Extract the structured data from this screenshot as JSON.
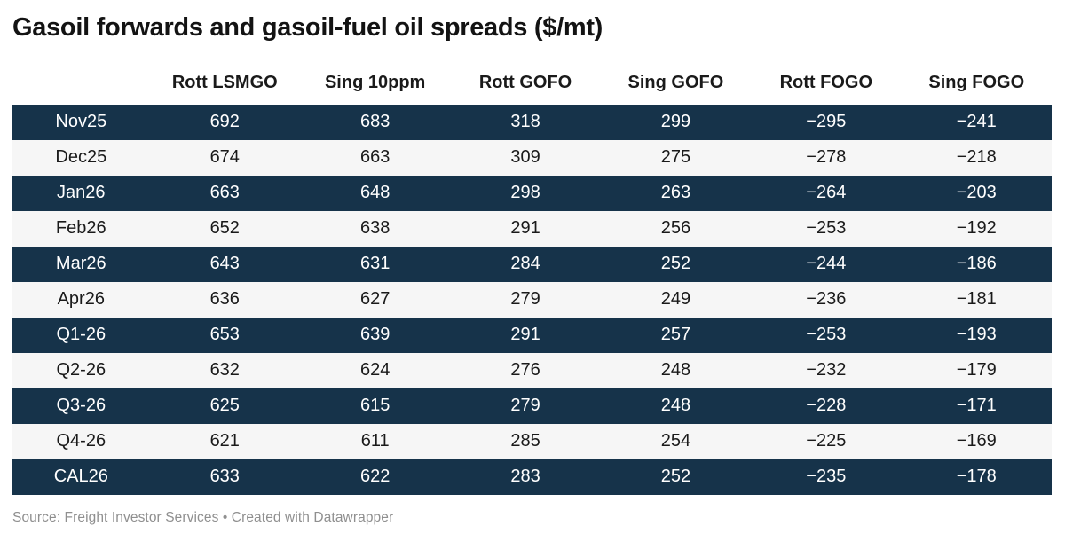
{
  "title": "Gasoil forwards and gasoil-fuel oil spreads ($/mt)",
  "footer": {
    "text": "Source: Freight Investor Services • Created with Datawrapper"
  },
  "colors": {
    "dark_row": "#16334a",
    "light_row": "#f6f6f6",
    "dark_row_text": "#ffffff",
    "body_text": "#1a1a1a",
    "footer_text": "#8f8f8f"
  },
  "chart_data": {
    "type": "table",
    "title": "Gasoil forwards and gasoil-fuel oil spreads ($/mt)",
    "columns": [
      "Rott LSMGO",
      "Sing 10ppm",
      "Rott GOFO",
      "Sing GOFO",
      "Rott FOGO",
      "Sing FOGO"
    ],
    "row_label_header": "",
    "rows": [
      {
        "label": "Nov25",
        "values": [
          692,
          683,
          318,
          299,
          -295,
          -241
        ]
      },
      {
        "label": "Dec25",
        "values": [
          674,
          663,
          309,
          275,
          -278,
          -218
        ]
      },
      {
        "label": "Jan26",
        "values": [
          663,
          648,
          298,
          263,
          -264,
          -203
        ]
      },
      {
        "label": "Feb26",
        "values": [
          652,
          638,
          291,
          256,
          -253,
          -192
        ]
      },
      {
        "label": "Mar26",
        "values": [
          643,
          631,
          284,
          252,
          -244,
          -186
        ]
      },
      {
        "label": "Apr26",
        "values": [
          636,
          627,
          279,
          249,
          -236,
          -181
        ]
      },
      {
        "label": "Q1-26",
        "values": [
          653,
          639,
          291,
          257,
          -253,
          -193
        ]
      },
      {
        "label": "Q2-26",
        "values": [
          632,
          624,
          276,
          248,
          -232,
          -179
        ]
      },
      {
        "label": "Q3-26",
        "values": [
          625,
          615,
          279,
          248,
          -228,
          -171
        ]
      },
      {
        "label": "Q4-26",
        "values": [
          621,
          611,
          285,
          254,
          -225,
          -169
        ]
      },
      {
        "label": "CAL26",
        "values": [
          633,
          622,
          283,
          252,
          -235,
          -178
        ]
      }
    ],
    "layout": {
      "row_striping": "alternating dark/light starting dark",
      "value_alignment": "center",
      "grid": false,
      "legend": false
    }
  }
}
